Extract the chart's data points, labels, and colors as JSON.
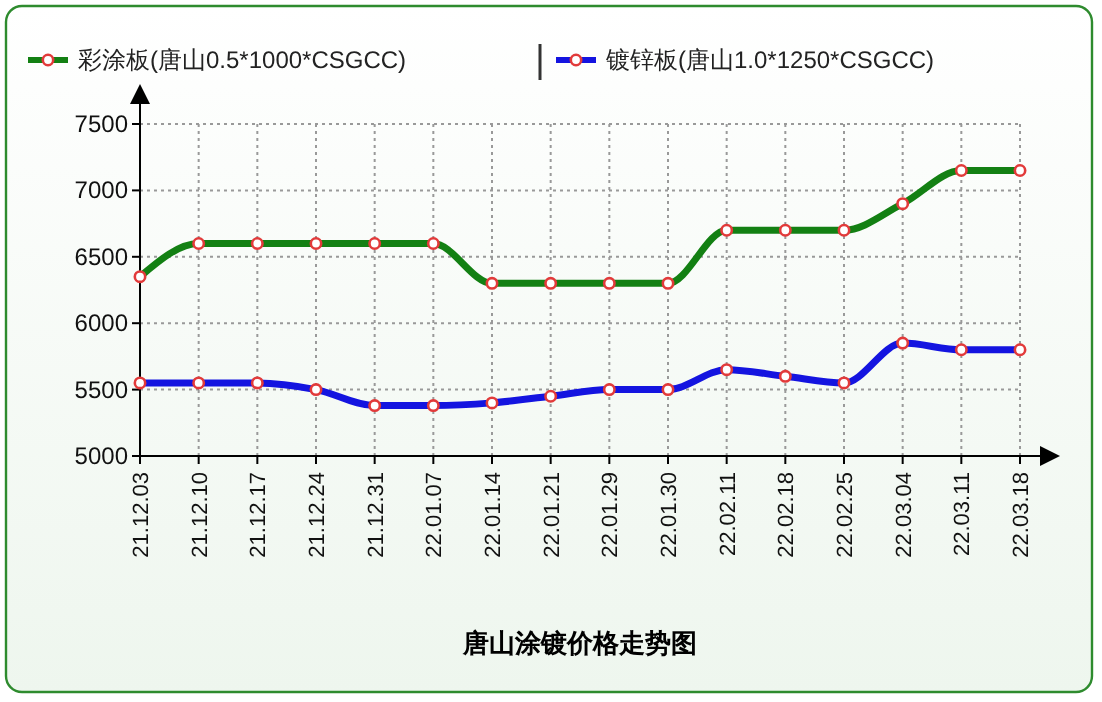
{
  "chart_data": {
    "type": "line",
    "title": "唐山涂镀价格走势图",
    "categories": [
      "21.12.03",
      "21.12.10",
      "21.12.17",
      "21.12.24",
      "21.12.31",
      "22.01.07",
      "22.01.14",
      "22.01.21",
      "22.01.29",
      "22.01.30",
      "22.02.11",
      "22.02.18",
      "22.02.25",
      "22.03.04",
      "22.03.11",
      "22.03.18"
    ],
    "series": [
      {
        "name": "彩涂板(唐山0.5*1000*CSGCC)",
        "color": "#138013",
        "values": [
          6350,
          6600,
          6600,
          6600,
          6600,
          6600,
          6300,
          6300,
          6300,
          6300,
          6700,
          6700,
          6700,
          6900,
          7150,
          7150
        ]
      },
      {
        "name": "镀锌板(唐山1.0*1250*CSGCC)",
        "color": "#1414e0",
        "values": [
          5550,
          5550,
          5550,
          5500,
          5380,
          5380,
          5400,
          5450,
          5500,
          5500,
          5650,
          5600,
          5550,
          5850,
          5800,
          5800
        ]
      }
    ],
    "ylim": [
      5000,
      7500
    ],
    "yticks": [
      5000,
      5500,
      6000,
      6500,
      7000,
      7500
    ],
    "grid": true,
    "legend": "top",
    "marker": "circle",
    "line_style": "solid"
  }
}
